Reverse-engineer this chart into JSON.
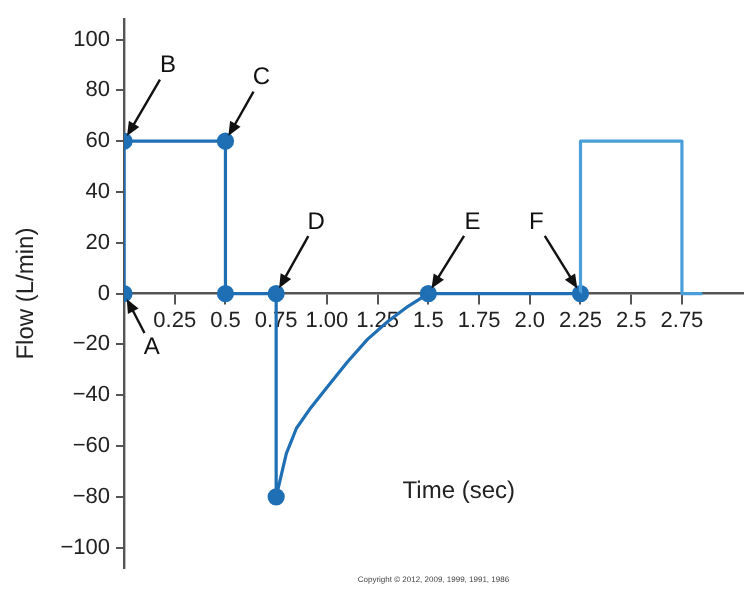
{
  "chart_data": {
    "type": "line",
    "xlabel": "Time (sec)",
    "ylabel": "Flow (L/min)",
    "xlim": [
      0,
      3.05
    ],
    "ylim": [
      -108,
      108
    ],
    "xticks": [
      0.25,
      0.5,
      0.75,
      {
        "value": 1,
        "label": "1.00"
      },
      1.25,
      1.5,
      1.75,
      {
        "value": 2,
        "label": "2.0"
      },
      2.25,
      2.5,
      2.75
    ],
    "yticks": [
      -100,
      -80,
      -60,
      -40,
      -20,
      0,
      20,
      40,
      60,
      80,
      100
    ],
    "grid": false,
    "legend": false,
    "marker": "none",
    "line_style": "solid",
    "series": [
      {
        "color": "#1f6fb5",
        "x": [
          0,
          0,
          0.5,
          0.5,
          0.75,
          0.75,
          0.8,
          0.85,
          0.92,
          1.0,
          1.1,
          1.2,
          1.3,
          1.4,
          1.5,
          2.25
        ],
        "values": [
          0,
          60,
          60,
          0,
          0,
          -80,
          -63,
          -53,
          -45,
          -37,
          -27,
          -18,
          -11,
          -5,
          0,
          0
        ]
      },
      {
        "color": "#4a9fd8",
        "x": [
          2.25,
          2.25,
          2.75,
          2.75,
          2.85
        ],
        "values": [
          0,
          60,
          60,
          0,
          0
        ]
      },
      {
        "type": "scatter",
        "marker": "circle",
        "color": "#1f6fb5",
        "x": [
          0,
          0,
          0.5,
          0.5,
          0.75,
          0.75,
          1.5,
          2.25
        ],
        "values": [
          0,
          60,
          60,
          0,
          0,
          -80,
          0,
          0
        ]
      }
    ],
    "annotations": [
      {
        "text": "A",
        "x": 0,
        "y": 0
      },
      {
        "text": "B",
        "x": 0,
        "y": 60
      },
      {
        "text": "C",
        "x": 0.5,
        "y": 60
      },
      {
        "text": "D",
        "x": 0.75,
        "y": 0
      },
      {
        "text": "E",
        "x": 1.5,
        "y": 0
      },
      {
        "text": "F",
        "x": 2.25,
        "y": 0
      },
      "Copyright © 2012, 2009, 1999, 1991, 1986"
    ]
  }
}
